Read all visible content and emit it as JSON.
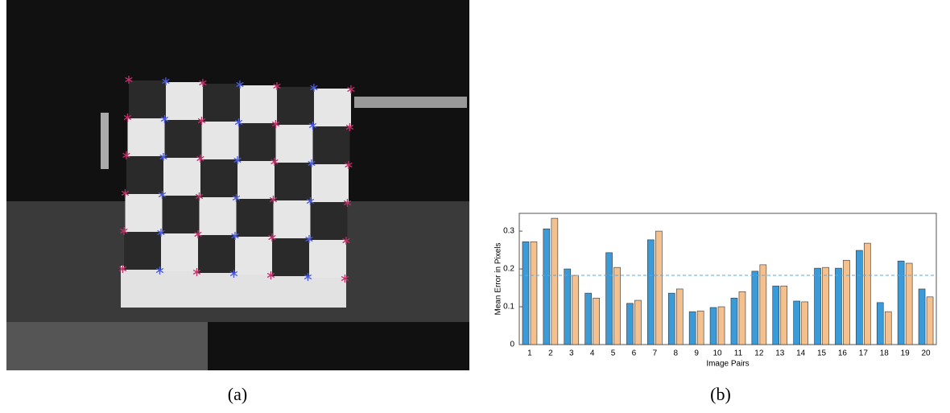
{
  "chart_data": {
    "type": "grouped-bar",
    "xlabel": "Image Pairs",
    "ylabel": "Mean Error in Pixels",
    "categories": [
      "1",
      "2",
      "3",
      "4",
      "5",
      "6",
      "7",
      "8",
      "9",
      "10",
      "11",
      "12",
      "13",
      "14",
      "15",
      "16",
      "17",
      "18",
      "19",
      "20"
    ],
    "series": [
      {
        "color": "#3b9ad8",
        "values": [
          0.272,
          0.306,
          0.2,
          0.136,
          0.243,
          0.109,
          0.277,
          0.136,
          0.087,
          0.098,
          0.123,
          0.194,
          0.155,
          0.115,
          0.202,
          0.202,
          0.249,
          0.111,
          0.221,
          0.147
        ]
      },
      {
        "color": "#f3c08e",
        "values": [
          0.272,
          0.334,
          0.183,
          0.123,
          0.204,
          0.117,
          0.3,
          0.147,
          0.089,
          0.1,
          0.14,
          0.211,
          0.155,
          0.113,
          0.204,
          0.223,
          0.268,
          0.087,
          0.215,
          0.126
        ]
      }
    ],
    "mean_line": 0.183,
    "mean_line_color": "#5aa9e6",
    "ylim": [
      0,
      0.347
    ],
    "yticks": [
      0,
      0.1,
      0.2,
      0.3
    ]
  },
  "captions": [
    "(a)",
    "(b)"
  ]
}
